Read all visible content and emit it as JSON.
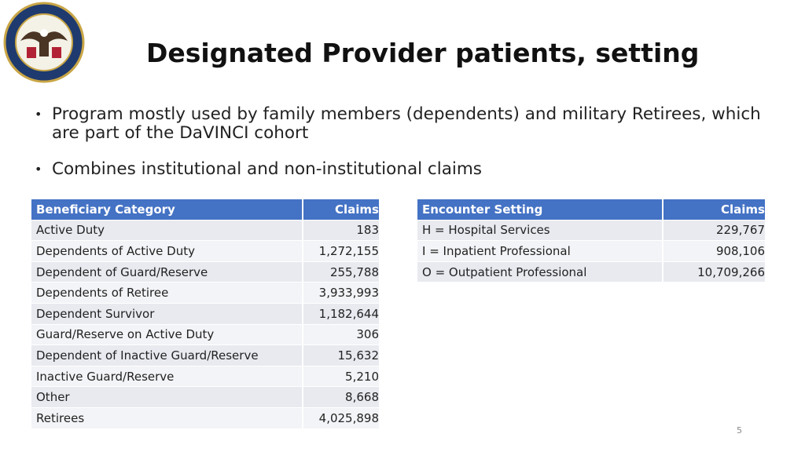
{
  "header": {
    "title": "Designated Provider patients, setting"
  },
  "bullets": [
    "Program mostly used by family members (dependents) and military Retirees, which are part of the DaVINCI cohort",
    "Combines institutional and non-institutional claims"
  ],
  "beneficiary_table": {
    "header": [
      "Beneficiary Category",
      "Claims"
    ],
    "rows": [
      [
        "Active Duty",
        "183"
      ],
      [
        "Dependents of Active Duty",
        "1,272,155"
      ],
      [
        "Dependent of Guard/Reserve",
        "255,788"
      ],
      [
        "Dependents of Retiree",
        "3,933,993"
      ],
      [
        "Dependent Survivor",
        "1,182,644"
      ],
      [
        "Guard/Reserve on Active Duty",
        "306"
      ],
      [
        "Dependent of Inactive Guard/Reserve",
        "15,632"
      ],
      [
        "Inactive Guard/Reserve",
        "5,210"
      ],
      [
        "Other",
        "8,668"
      ],
      [
        "Retirees",
        "4,025,898"
      ]
    ]
  },
  "encounter_table": {
    "header": [
      "Encounter Setting",
      "Claims"
    ],
    "rows": [
      [
        "H = Hospital Services",
        "229,767"
      ],
      [
        "I = Inpatient Professional",
        "908,106"
      ],
      [
        "O = Outpatient Professional",
        "10,709,266"
      ]
    ]
  },
  "page_number": "5"
}
